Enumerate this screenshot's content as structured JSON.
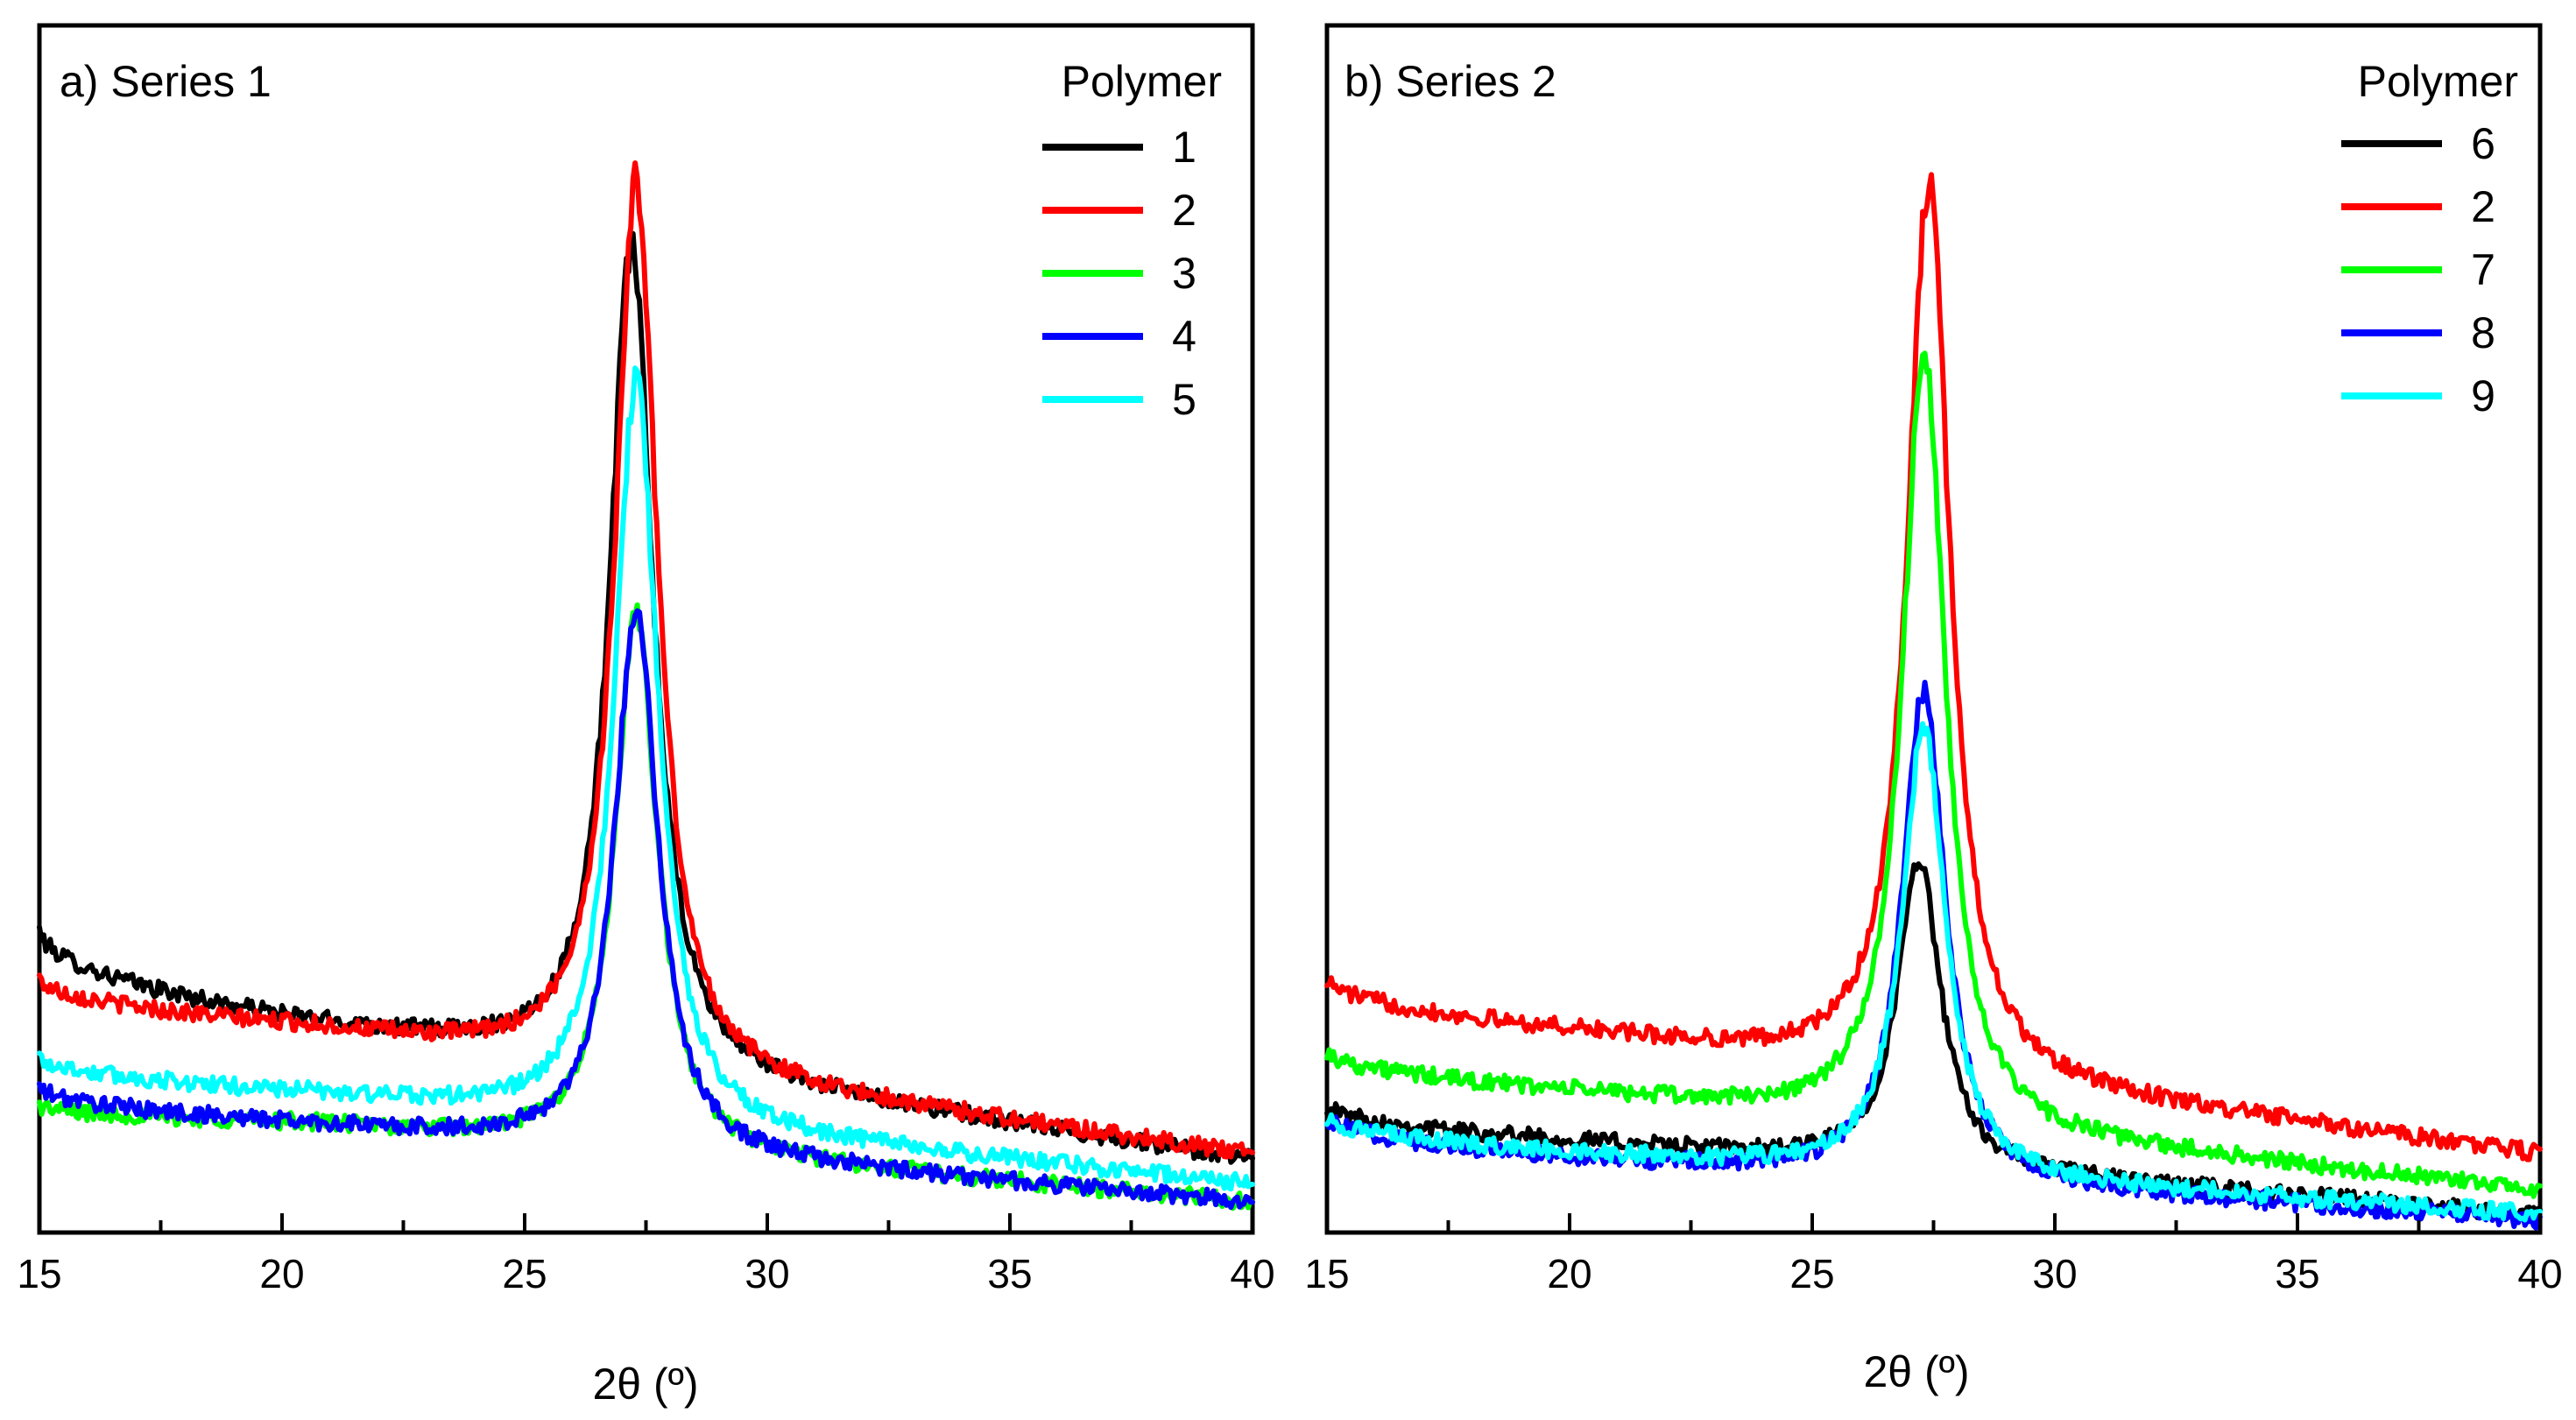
{
  "chart_data": [
    {
      "type": "line",
      "title": "a) Series 1",
      "xlabel": "2θ (º)",
      "ylabel": "",
      "xlim": [
        15,
        40
      ],
      "ylim": [
        0,
        1
      ],
      "x_ticks": [
        15,
        20,
        25,
        30,
        35,
        40
      ],
      "x_tick_labels": [
        "15",
        "20",
        "25",
        "30",
        "35",
        "40"
      ],
      "legend_title": "Polymer",
      "legend_position": "top-right",
      "series": [
        {
          "name": "1",
          "color": "#000000",
          "peak_x": 27.2,
          "peak": 0.82,
          "baseline_start": 0.25,
          "baseline_min": 0.175,
          "baseline_end": 0.06
        },
        {
          "name": "2",
          "color": "#ff0000",
          "peak_x": 27.3,
          "peak": 0.87,
          "baseline_start": 0.21,
          "baseline_min": 0.17,
          "baseline_end": 0.065
        },
        {
          "name": "3",
          "color": "#00ff00",
          "peak_x": 27.3,
          "peak": 0.51,
          "baseline_start": 0.105,
          "baseline_min": 0.09,
          "baseline_end": 0.025
        },
        {
          "name": "4",
          "color": "#0000ff",
          "peak_x": 27.3,
          "peak": 0.52,
          "baseline_start": 0.12,
          "baseline_min": 0.09,
          "baseline_end": 0.025
        },
        {
          "name": "5",
          "color": "#00ffff",
          "peak_x": 27.3,
          "peak": 0.71,
          "baseline_start": 0.145,
          "baseline_min": 0.115,
          "baseline_end": 0.04
        }
      ]
    },
    {
      "type": "line",
      "title": "b) Series 2",
      "xlabel": "2θ (º)",
      "ylabel": "",
      "xlim": [
        15,
        40
      ],
      "ylim": [
        0,
        1
      ],
      "x_ticks": [
        15,
        20,
        25,
        30,
        35,
        40
      ],
      "x_tick_labels": [
        "15",
        "20",
        "25",
        "30",
        "35",
        "40"
      ],
      "legend_title": "Polymer",
      "legend_position": "top-right",
      "series": [
        {
          "name": "6",
          "color": "#000000",
          "peak_x": 27.2,
          "peak": 0.31,
          "baseline_start": 0.105,
          "baseline_min": 0.075,
          "baseline_end": 0.015
        },
        {
          "name": "2",
          "color": "#ff0000",
          "peak_x": 27.4,
          "peak": 0.87,
          "baseline_start": 0.21,
          "baseline_min": 0.165,
          "baseline_end": 0.065
        },
        {
          "name": "7",
          "color": "#00ff00",
          "peak_x": 27.3,
          "peak": 0.73,
          "baseline_start": 0.15,
          "baseline_min": 0.115,
          "baseline_end": 0.035
        },
        {
          "name": "8",
          "color": "#0000ff",
          "peak_x": 27.3,
          "peak": 0.45,
          "baseline_start": 0.095,
          "baseline_min": 0.06,
          "baseline_end": 0.01
        },
        {
          "name": "9",
          "color": "#00ffff",
          "peak_x": 27.3,
          "peak": 0.42,
          "baseline_start": 0.095,
          "baseline_min": 0.065,
          "baseline_end": 0.015
        }
      ]
    }
  ]
}
